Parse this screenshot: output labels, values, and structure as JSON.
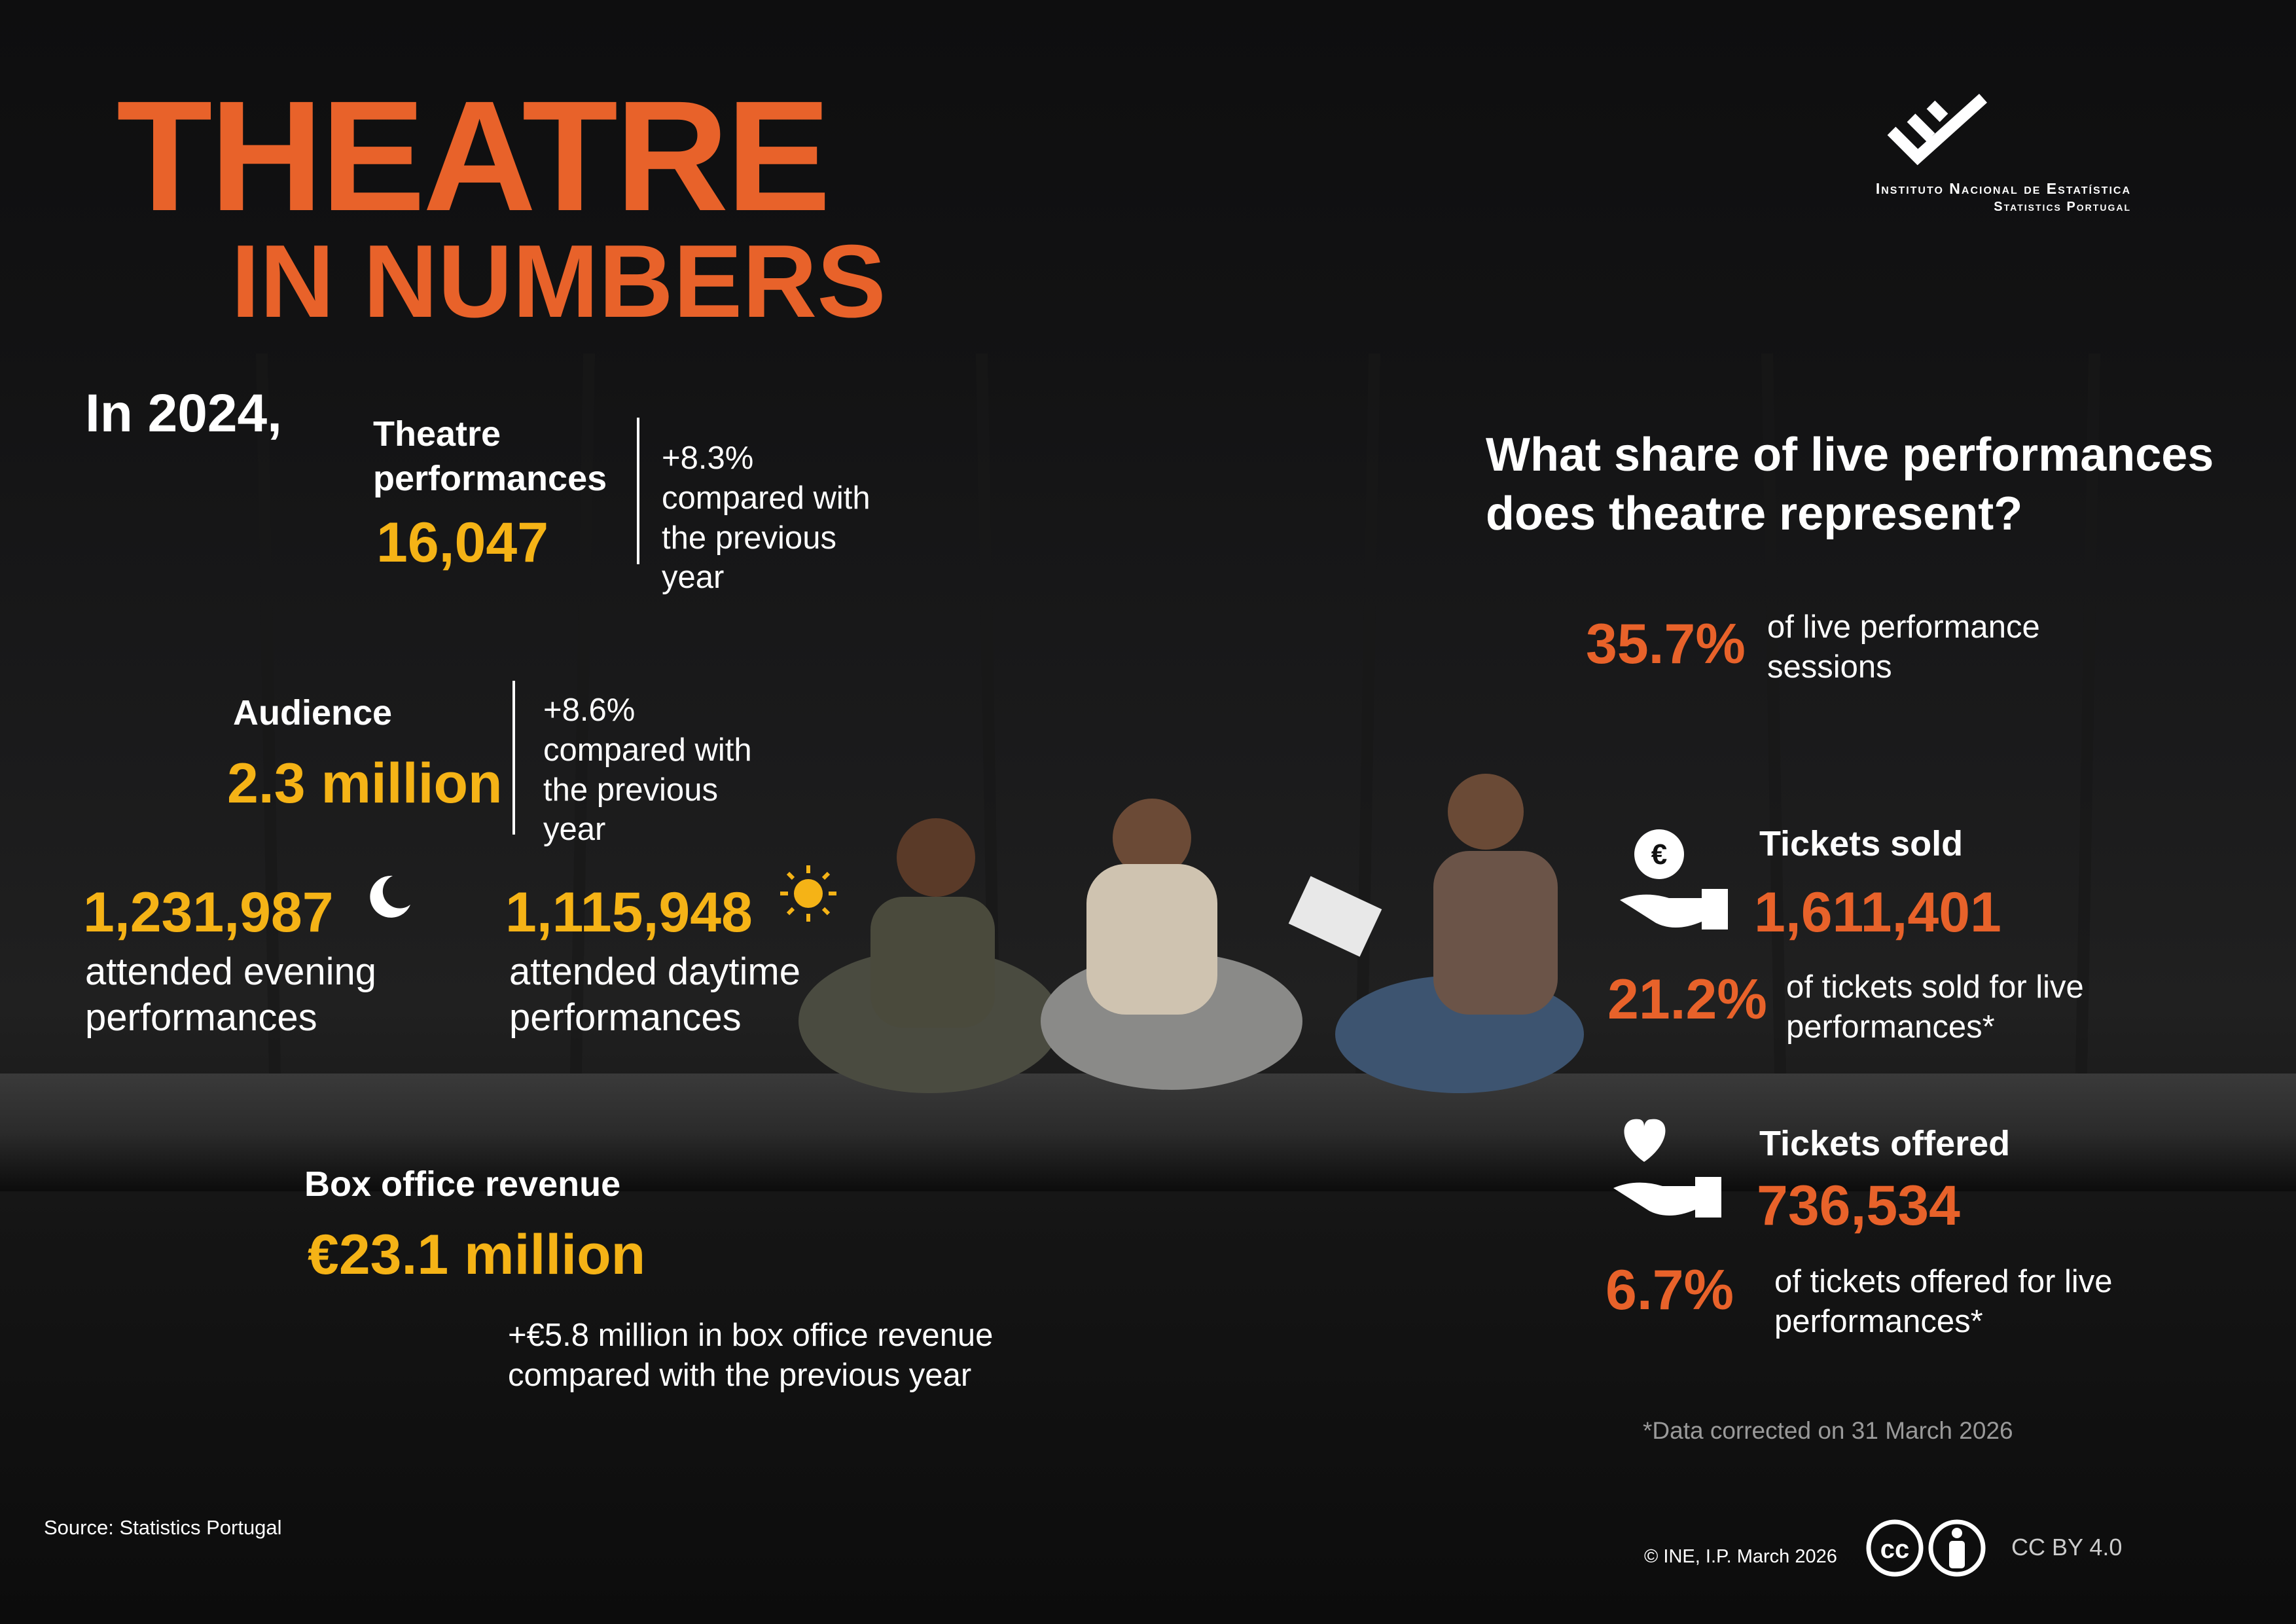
{
  "header": {
    "title": "THEATRE",
    "subtitle": "IN NUMBERS"
  },
  "logo": {
    "line1": "Instituto Nacional de Estatística",
    "line2": "Statistics Portugal"
  },
  "intro": "In 2024,",
  "performances": {
    "label": "Theatre performances",
    "value": "16,047",
    "change": "+8.3% compared with the previous year"
  },
  "audience": {
    "label": "Audience",
    "value": "2.3 million",
    "change": "+8.6% compared with the previous year",
    "evening": {
      "value": "1,231,987",
      "label": "attended evening performances"
    },
    "daytime": {
      "value": "1,115,948",
      "label": "attended daytime performances"
    }
  },
  "box_office": {
    "label": "Box office revenue",
    "value": "€23.1 million",
    "change": "+€5.8 million in box office revenue compared with the previous year"
  },
  "share": {
    "question": "What share of live performances does theatre represent?",
    "sessions": {
      "value": "35.7%",
      "label": "of live performance sessions"
    },
    "tickets_sold": {
      "label": "Tickets sold",
      "value": "1,611,401",
      "share": "21.2%",
      "share_label": "of tickets sold for live performances*"
    },
    "tickets_offered": {
      "label": "Tickets offered",
      "value": "736,534",
      "share": "6.7%",
      "share_label": "of tickets offered for live performances*"
    }
  },
  "note": "*Data corrected on 31 March 2026",
  "footer": {
    "source": "Source: Statistics Portugal",
    "copyright": "© INE, I.P. March 2026",
    "license": "CC BY 4.0"
  }
}
